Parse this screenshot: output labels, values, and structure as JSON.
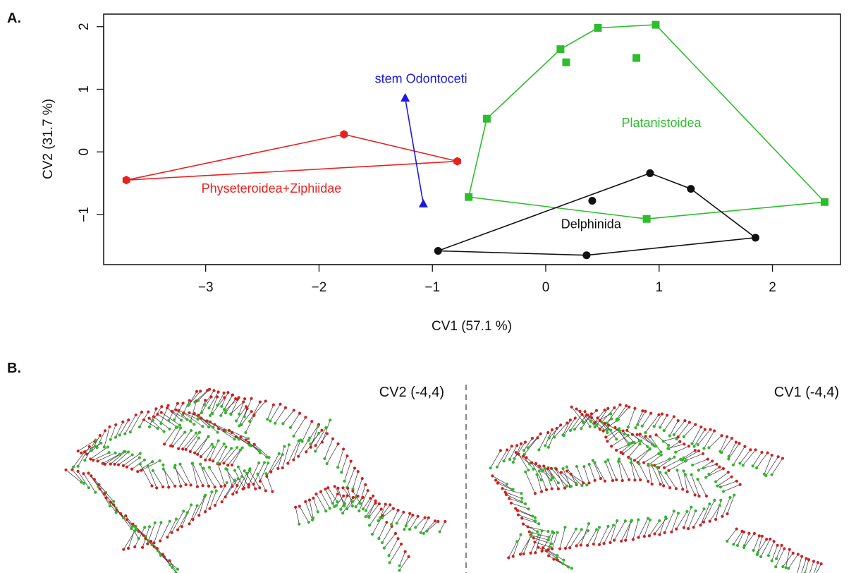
{
  "panels": {
    "a_label": "A.",
    "b_label": "B."
  },
  "chart_data": {
    "type": "scatter",
    "title": "",
    "xlabel": "CV1 (57.1 %)",
    "ylabel": "CV2 (31.7 %)",
    "xlim": [
      -3.9,
      2.6
    ],
    "ylim": [
      -1.8,
      2.2
    ],
    "xticks": [
      -3,
      -2,
      -1,
      0,
      1,
      2
    ],
    "yticks": [
      -1,
      0,
      1,
      2
    ],
    "xtick_labels": [
      "−3",
      "−2",
      "−1",
      "0",
      "1",
      "2"
    ],
    "ytick_labels": [
      "−1",
      "0",
      "1",
      "2"
    ],
    "grid": false,
    "series": [
      {
        "name": "Physeteroidea+Ziphiidae",
        "color": "#e8201e",
        "marker": "hexagon",
        "points": [
          [
            -3.7,
            -0.45
          ],
          [
            -1.78,
            0.28
          ],
          [
            -0.78,
            -0.15
          ]
        ],
        "hull": [
          [
            -3.7,
            -0.45
          ],
          [
            -1.78,
            0.28
          ],
          [
            -0.78,
            -0.15
          ]
        ],
        "label_at": [
          -2.42,
          -0.65
        ]
      },
      {
        "name": "stem Odontoceti",
        "color": "#1a1adf",
        "marker": "triangle",
        "points": [
          [
            -1.24,
            0.86
          ],
          [
            -1.08,
            -0.83
          ]
        ],
        "hull": [
          [
            -1.24,
            0.86
          ],
          [
            -1.08,
            -0.83
          ]
        ],
        "label_at": [
          -1.1,
          1.1
        ]
      },
      {
        "name": "Platanistoidea",
        "color": "#2dbd2d",
        "marker": "square",
        "points": [
          [
            -0.68,
            -0.72
          ],
          [
            -0.52,
            0.53
          ],
          [
            0.13,
            1.64
          ],
          [
            0.18,
            1.43
          ],
          [
            0.46,
            1.98
          ],
          [
            0.8,
            1.5
          ],
          [
            0.97,
            2.03
          ],
          [
            0.89,
            -1.07
          ],
          [
            2.46,
            -0.8
          ]
        ],
        "hull": [
          [
            -0.68,
            -0.72
          ],
          [
            -0.52,
            0.53
          ],
          [
            0.13,
            1.64
          ],
          [
            0.46,
            1.98
          ],
          [
            0.97,
            2.03
          ],
          [
            2.46,
            -0.8
          ],
          [
            0.89,
            -1.07
          ]
        ],
        "label_at": [
          1.02,
          0.4
        ]
      },
      {
        "name": "Delphinida",
        "color": "#111111",
        "marker": "circle",
        "points": [
          [
            -0.95,
            -1.58
          ],
          [
            0.36,
            -1.65
          ],
          [
            0.41,
            -0.78
          ],
          [
            0.92,
            -0.34
          ],
          [
            1.28,
            -0.59
          ],
          [
            1.85,
            -1.37
          ]
        ],
        "hull": [
          [
            -0.95,
            -1.58
          ],
          [
            0.92,
            -0.34
          ],
          [
            1.28,
            -0.59
          ],
          [
            1.85,
            -1.37
          ],
          [
            0.36,
            -1.65
          ]
        ],
        "label_at": [
          0.4,
          -1.22
        ]
      }
    ]
  },
  "shape_panels": [
    {
      "label": "CV2 (-4,4)"
    },
    {
      "label": "CV1 (-4,4)"
    }
  ],
  "colors": {
    "landmark_a": "#cf2020",
    "landmark_b": "#33b52e",
    "vector": "#333333"
  }
}
